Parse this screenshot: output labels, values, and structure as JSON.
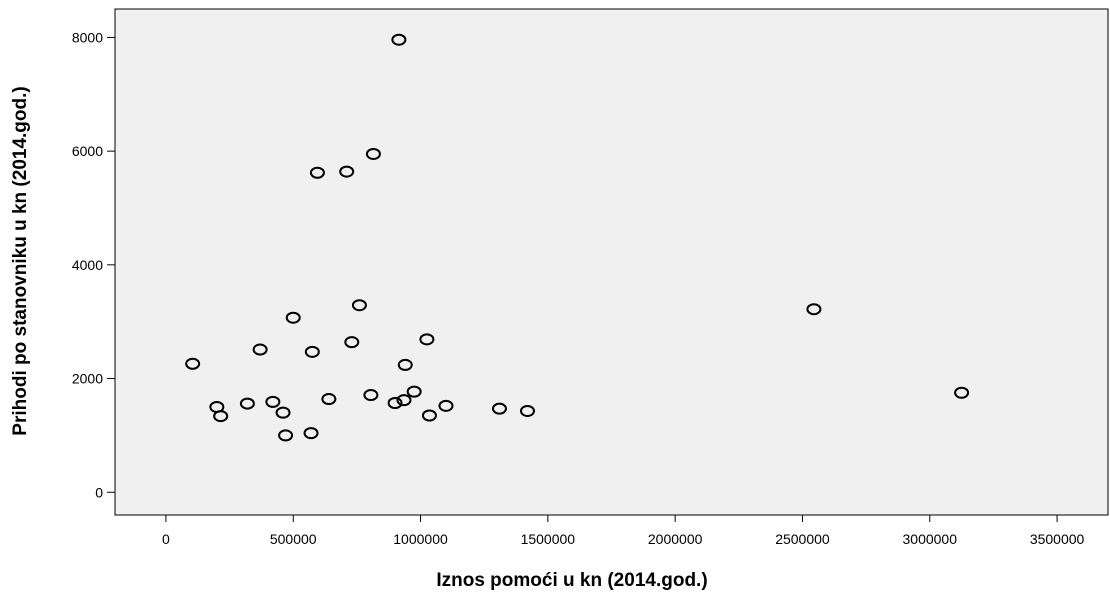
{
  "chart_data": {
    "type": "scatter",
    "xlabel": "Iznos pomoći u kn (2014.god.)",
    "ylabel": "Prihodi po stanovniku u kn (2014.god.)",
    "xlim": [
      -200000,
      3700000
    ],
    "ylim": [
      -400,
      8500
    ],
    "xticks": [
      0,
      500000,
      1000000,
      1500000,
      2000000,
      2500000,
      3000000,
      3500000
    ],
    "yticks": [
      0,
      2000,
      4000,
      6000,
      8000
    ],
    "xtick_labels": [
      "0",
      "500000",
      "1000000",
      "1500000",
      "2000000",
      "2500000",
      "3000000",
      "3500000"
    ],
    "ytick_labels": [
      "0",
      "2000",
      "4000",
      "6000",
      "8000"
    ],
    "grid": false,
    "plot_background": "#f0f0f0",
    "marker": "open-circle",
    "points": [
      {
        "x": 915000,
        "y": 7960
      },
      {
        "x": 815000,
        "y": 5950
      },
      {
        "x": 595000,
        "y": 5620
      },
      {
        "x": 710000,
        "y": 5640
      },
      {
        "x": 760000,
        "y": 3290
      },
      {
        "x": 2545000,
        "y": 3220
      },
      {
        "x": 500000,
        "y": 3070
      },
      {
        "x": 1025000,
        "y": 2690
      },
      {
        "x": 730000,
        "y": 2640
      },
      {
        "x": 370000,
        "y": 2510
      },
      {
        "x": 575000,
        "y": 2470
      },
      {
        "x": 105000,
        "y": 2260
      },
      {
        "x": 940000,
        "y": 2240
      },
      {
        "x": 3125000,
        "y": 1750
      },
      {
        "x": 975000,
        "y": 1770
      },
      {
        "x": 805000,
        "y": 1710
      },
      {
        "x": 640000,
        "y": 1640
      },
      {
        "x": 935000,
        "y": 1620
      },
      {
        "x": 420000,
        "y": 1590
      },
      {
        "x": 900000,
        "y": 1570
      },
      {
        "x": 320000,
        "y": 1560
      },
      {
        "x": 1100000,
        "y": 1520
      },
      {
        "x": 200000,
        "y": 1500
      },
      {
        "x": 1310000,
        "y": 1470
      },
      {
        "x": 1420000,
        "y": 1430
      },
      {
        "x": 460000,
        "y": 1400
      },
      {
        "x": 1035000,
        "y": 1350
      },
      {
        "x": 215000,
        "y": 1340
      },
      {
        "x": 570000,
        "y": 1040
      },
      {
        "x": 470000,
        "y": 1000
      }
    ]
  }
}
